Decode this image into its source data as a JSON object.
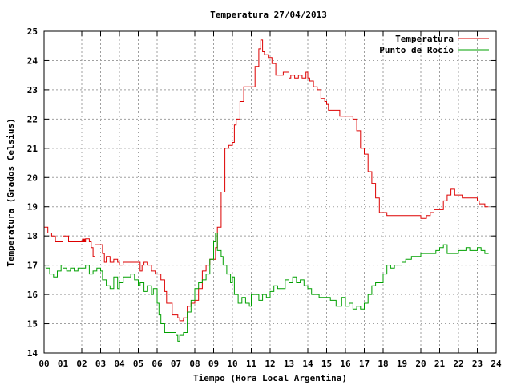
{
  "chart_data": {
    "type": "line",
    "title": "Temperatura 27/04/2013",
    "xlabel": "Tiempo (Hora Local Argentina)",
    "ylabel": "Temperatura (Grados Celsius)",
    "xlim": [
      0,
      24
    ],
    "ylim": [
      14,
      25
    ],
    "grid": true,
    "legend_position": "top-right",
    "x_tick_labels": [
      "00",
      "01",
      "02",
      "03",
      "04",
      "05",
      "06",
      "07",
      "08",
      "09",
      "10",
      "11",
      "12",
      "13",
      "14",
      "15",
      "16",
      "17",
      "18",
      "19",
      "20",
      "21",
      "22",
      "23",
      "24"
    ],
    "y_tick_labels": [
      "14",
      "15",
      "16",
      "17",
      "18",
      "19",
      "20",
      "21",
      "22",
      "23",
      "24",
      "25"
    ],
    "series": [
      {
        "name": "Temperatura",
        "color": "#dd0000",
        "x": [
          0,
          0.2,
          0.4,
          0.6,
          0.9,
          1.0,
          1.3,
          1.6,
          2.0,
          2.2,
          2.4,
          2.5,
          2.6,
          2.7,
          2.9,
          3.0,
          3.1,
          3.2,
          3.3,
          3.5,
          3.7,
          3.9,
          4.0,
          4.2,
          4.5,
          4.8,
          5.0,
          5.1,
          5.2,
          5.3,
          5.5,
          5.7,
          5.9,
          6.0,
          6.2,
          6.4,
          6.5,
          6.8,
          7.0,
          7.1,
          7.2,
          7.4,
          7.6,
          7.8,
          8.0,
          8.2,
          8.4,
          8.6,
          8.8,
          9.0,
          9.1,
          9.2,
          9.4,
          9.6,
          9.8,
          10.0,
          10.1,
          10.2,
          10.4,
          10.6,
          10.8,
          11.0,
          11.2,
          11.4,
          11.5,
          11.6,
          11.7,
          11.9,
          12.1,
          12.3,
          12.5,
          12.7,
          12.9,
          13.0,
          13.1,
          13.3,
          13.5,
          13.7,
          13.9,
          14.0,
          14.1,
          14.3,
          14.5,
          14.7,
          14.9,
          15.0,
          15.1,
          15.3,
          15.5,
          15.7,
          16.0,
          16.2,
          16.4,
          16.6,
          16.8,
          17.0,
          17.2,
          17.4,
          17.6,
          17.8,
          18.0,
          18.2,
          18.4,
          18.6,
          19.0,
          19.5,
          20.0,
          20.3,
          20.5,
          20.7,
          21.0,
          21.2,
          21.4,
          21.6,
          21.8,
          22.0,
          22.2,
          22.4,
          22.6,
          22.8,
          23.0,
          23.1,
          23.2,
          23.4,
          23.6
        ],
        "y": [
          18.3,
          18.1,
          18.0,
          17.8,
          17.8,
          18.0,
          17.8,
          17.8,
          17.8,
          17.9,
          17.8,
          17.6,
          17.3,
          17.7,
          17.7,
          17.7,
          17.4,
          17.1,
          17.3,
          17.1,
          17.2,
          17.1,
          17.0,
          17.1,
          17.1,
          17.1,
          17.1,
          16.8,
          17.0,
          17.1,
          17.0,
          16.8,
          16.7,
          16.7,
          16.5,
          16.1,
          15.7,
          15.3,
          15.3,
          15.2,
          15.1,
          15.2,
          15.6,
          15.7,
          15.8,
          16.2,
          16.8,
          17.0,
          17.2,
          17.2,
          17.6,
          18.3,
          19.5,
          21.0,
          21.1,
          21.2,
          21.8,
          22.0,
          22.6,
          23.1,
          23.1,
          23.1,
          23.8,
          24.4,
          24.7,
          24.3,
          24.2,
          24.1,
          23.9,
          23.5,
          23.5,
          23.6,
          23.6,
          23.4,
          23.5,
          23.4,
          23.5,
          23.4,
          23.6,
          23.4,
          23.3,
          23.1,
          23.0,
          22.7,
          22.6,
          22.5,
          22.3,
          22.3,
          22.3,
          22.1,
          22.1,
          22.1,
          22.0,
          21.6,
          21.0,
          20.8,
          20.2,
          19.8,
          19.3,
          18.8,
          18.8,
          18.7,
          18.7,
          18.7,
          18.7,
          18.7,
          18.6,
          18.7,
          18.8,
          18.9,
          18.9,
          19.2,
          19.4,
          19.6,
          19.4,
          19.4,
          19.3,
          19.3,
          19.3,
          19.3,
          19.2,
          19.1,
          19.1,
          19.0,
          19.0
        ],
        "markers": [
          {
            "x": 2.1,
            "y": 17.85
          }
        ]
      },
      {
        "name": "Punto de Rocío",
        "color": "#00a000",
        "x": [
          0,
          0.1,
          0.3,
          0.5,
          0.7,
          0.9,
          1.0,
          1.2,
          1.4,
          1.6,
          1.8,
          2.0,
          2.2,
          2.4,
          2.6,
          2.8,
          3.0,
          3.1,
          3.3,
          3.5,
          3.7,
          3.9,
          4.0,
          4.2,
          4.4,
          4.6,
          4.8,
          5.0,
          5.1,
          5.3,
          5.5,
          5.7,
          5.8,
          6.0,
          6.1,
          6.2,
          6.4,
          6.6,
          6.8,
          7.0,
          7.1,
          7.2,
          7.4,
          7.6,
          7.8,
          8.0,
          8.2,
          8.4,
          8.6,
          8.8,
          9.0,
          9.1,
          9.2,
          9.4,
          9.5,
          9.7,
          9.9,
          10.0,
          10.1,
          10.3,
          10.5,
          10.7,
          10.9,
          11.0,
          11.2,
          11.4,
          11.6,
          11.8,
          12.0,
          12.2,
          12.4,
          12.6,
          12.8,
          13.0,
          13.2,
          13.4,
          13.6,
          13.8,
          14.0,
          14.2,
          14.4,
          14.6,
          14.8,
          15.0,
          15.2,
          15.5,
          15.8,
          16.0,
          16.2,
          16.4,
          16.6,
          16.8,
          17.0,
          17.2,
          17.4,
          17.6,
          17.8,
          18.0,
          18.2,
          18.4,
          18.6,
          18.8,
          19.0,
          19.2,
          19.5,
          20.0,
          20.5,
          20.8,
          21.0,
          21.2,
          21.4,
          21.6,
          21.8,
          22.0,
          22.2,
          22.4,
          22.6,
          22.8,
          23.0,
          23.2,
          23.4,
          23.6
        ],
        "y": [
          17.0,
          16.9,
          16.7,
          16.6,
          16.8,
          17.0,
          16.9,
          16.8,
          16.9,
          16.8,
          16.9,
          16.9,
          17.0,
          16.7,
          16.8,
          16.9,
          16.8,
          16.5,
          16.3,
          16.2,
          16.6,
          16.2,
          16.4,
          16.6,
          16.6,
          16.7,
          16.5,
          16.3,
          16.4,
          16.1,
          16.3,
          16.0,
          16.2,
          15.7,
          15.3,
          15.0,
          14.7,
          14.7,
          14.7,
          14.6,
          14.4,
          14.6,
          14.7,
          15.4,
          15.8,
          16.2,
          16.4,
          16.5,
          16.7,
          17.2,
          17.8,
          18.1,
          17.5,
          17.3,
          17.0,
          16.7,
          16.4,
          16.6,
          16.0,
          15.7,
          15.9,
          15.7,
          15.6,
          16.0,
          16.0,
          15.8,
          16.0,
          15.9,
          16.1,
          16.3,
          16.2,
          16.2,
          16.5,
          16.4,
          16.6,
          16.4,
          16.5,
          16.3,
          16.2,
          16.0,
          16.0,
          15.9,
          15.9,
          15.9,
          15.8,
          15.6,
          15.9,
          15.6,
          15.7,
          15.5,
          15.6,
          15.5,
          15.7,
          16.0,
          16.3,
          16.4,
          16.4,
          16.7,
          17.0,
          16.9,
          17.0,
          17.0,
          17.1,
          17.2,
          17.3,
          17.4,
          17.4,
          17.5,
          17.6,
          17.7,
          17.4,
          17.4,
          17.4,
          17.5,
          17.5,
          17.6,
          17.5,
          17.5,
          17.6,
          17.5,
          17.4,
          17.4
        ]
      }
    ]
  }
}
